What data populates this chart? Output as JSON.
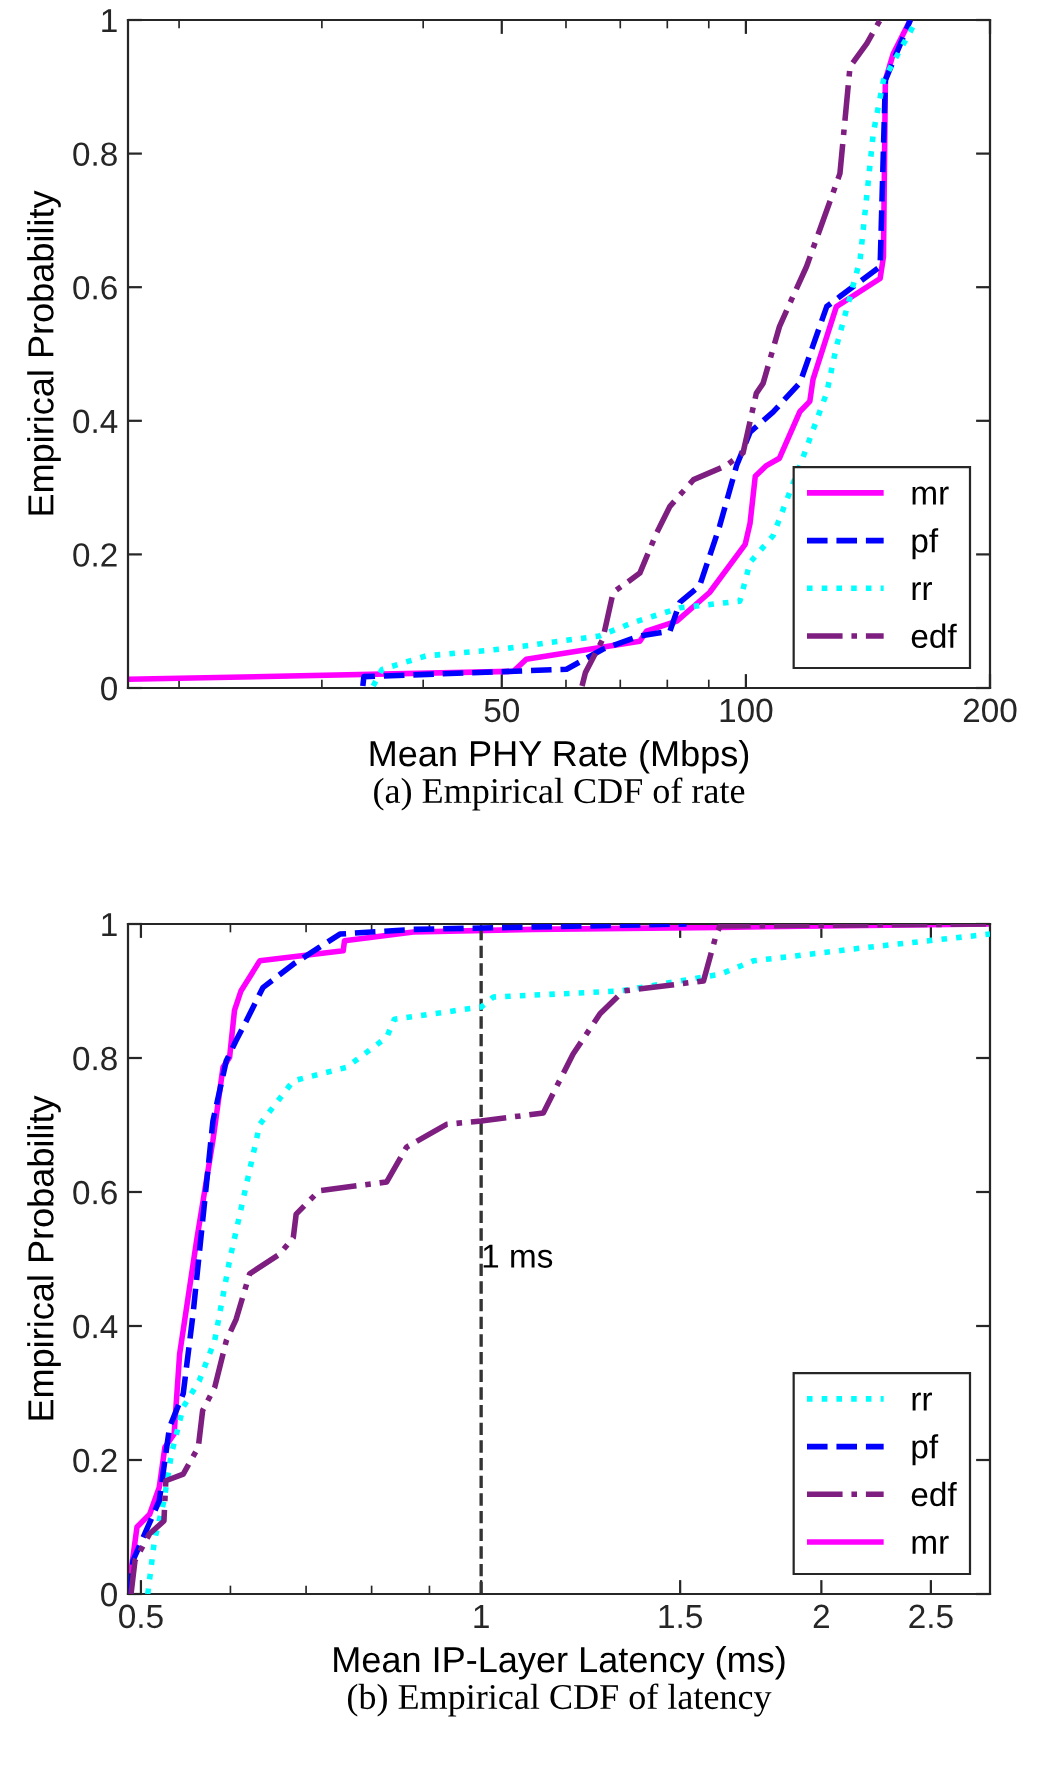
{
  "chart_data": [
    {
      "type": "line",
      "xlabel": "Mean PHY Rate (Mbps)",
      "ylabel": "Empirical Probability",
      "log": "x",
      "xlim": [
        17.3,
        200
      ],
      "xticks": [
        50,
        100,
        200
      ],
      "ylim": [
        0,
        1
      ],
      "yticks": [
        0,
        0.2,
        0.4,
        0.6,
        0.8,
        1
      ],
      "grid": false,
      "legend": "bottom right",
      "annotations": [
        "(a) Empirical CDF of rate"
      ],
      "series": [
        {
          "name": "mr",
          "color": "#ff00ff",
          "line_style": "solid",
          "x": [
            17.3,
            51.7,
            53.6,
            74,
            75.4,
            82.2,
            90.2,
            99.8,
            101.2,
            102.7,
            106,
            110,
            116.6,
            119.9,
            121,
            129.3,
            146.4,
            147.8,
            148.6,
            152,
            159.5
          ],
          "values": [
            0.013,
            0.025,
            0.043,
            0.07,
            0.085,
            0.1,
            0.143,
            0.215,
            0.247,
            0.317,
            0.333,
            0.344,
            0.414,
            0.429,
            0.462,
            0.571,
            0.613,
            0.646,
            0.91,
            0.95,
            1.0
          ]
        },
        {
          "name": "pf",
          "color": "#0000ff",
          "line_style": "dashed",
          "x": [
            33.7,
            33.8,
            60.1,
            66.6,
            74,
            80.6,
            82.9,
            87.7,
            92.8,
            97.4,
            101.2,
            108,
            116.6,
            125.8,
            130.6,
            146.4,
            148.6,
            159.5
          ],
          "values": [
            0.003,
            0.017,
            0.028,
            0.058,
            0.078,
            0.085,
            0.128,
            0.153,
            0.242,
            0.333,
            0.383,
            0.413,
            0.457,
            0.571,
            0.586,
            0.631,
            0.91,
            1.0
          ]
        },
        {
          "name": "rr",
          "color": "#00ffff",
          "line_style": "dotted",
          "x": [
            34.7,
            35.6,
            40.3,
            49.7,
            66,
            72.6,
            82.9,
            98.3,
            101.2,
            108,
            116.6,
            125.8,
            129.3,
            138.3,
            143.6,
            147.8,
            162.4
          ],
          "values": [
            0.003,
            0.028,
            0.048,
            0.058,
            0.078,
            0.098,
            0.12,
            0.13,
            0.188,
            0.228,
            0.333,
            0.442,
            0.511,
            0.641,
            0.831,
            0.91,
            1.0
          ]
        },
        {
          "name": "edf",
          "color": "#7e1e80",
          "line_style": "dashdot",
          "x": [
            62.8,
            63.4,
            66.6,
            68.6,
            74,
            77.6,
            80.6,
            86.2,
            94.6,
            99.2,
            103,
            105,
            110,
            113.3,
            118.8,
            130.6,
            134.4,
            141,
            146.4
          ],
          "values": [
            0.003,
            0.023,
            0.073,
            0.143,
            0.172,
            0.232,
            0.272,
            0.312,
            0.333,
            0.352,
            0.441,
            0.456,
            0.541,
            0.576,
            0.631,
            0.77,
            0.93,
            0.965,
            1.0
          ]
        }
      ]
    },
    {
      "type": "line",
      "xlabel": "Mean IP-Layer Latency (ms)",
      "ylabel": "Empirical Probability",
      "log": "x",
      "xlim": [
        0.487,
        2.82
      ],
      "xticks": [
        0.5,
        1,
        1.5,
        2,
        2.5
      ],
      "ylim": [
        0,
        1
      ],
      "yticks": [
        0,
        0.2,
        0.4,
        0.6,
        0.8,
        1
      ],
      "grid": false,
      "legend": "bottom right",
      "annotations": [
        "(b) Empirical CDF of latency"
      ],
      "ref_lines": [
        {
          "axis": "x",
          "value": 1,
          "label": "1 ms",
          "color": "#333333",
          "line_style": "dashed"
        }
      ],
      "series": [
        {
          "name": "rr",
          "color": "#00ffff",
          "line_style": "dotted",
          "x": [
            0.507,
            0.514,
            0.524,
            0.532,
            0.545,
            0.563,
            0.581,
            0.599,
            0.621,
            0.637,
            0.668,
            0.682,
            0.76,
            0.825,
            0.838,
            1.0,
            1.025,
            1.327,
            1.627,
            1.741,
            2.194,
            2.82
          ],
          "values": [
            0,
            0.08,
            0.139,
            0.209,
            0.279,
            0.318,
            0.378,
            0.498,
            0.617,
            0.701,
            0.746,
            0.766,
            0.786,
            0.831,
            0.858,
            0.876,
            0.891,
            0.9,
            0.925,
            0.945,
            0.965,
            0.985
          ]
        },
        {
          "name": "pf",
          "color": "#0000ff",
          "line_style": "dashed",
          "x": [
            0.489,
            0.492,
            0.519,
            0.53,
            0.545,
            0.556,
            0.567,
            0.579,
            0.595,
            0.607,
            0.62,
            0.641,
            0.682,
            0.719,
            0.75,
            0.871,
            1.52
          ],
          "values": [
            0,
            0.05,
            0.139,
            0.249,
            0.299,
            0.418,
            0.557,
            0.706,
            0.796,
            0.826,
            0.856,
            0.905,
            0.94,
            0.965,
            0.985,
            0.992,
            1.0
          ]
        },
        {
          "name": "edf",
          "color": "#7e1e80",
          "line_style": "dashdot",
          "x": [
            0.49,
            0.494,
            0.509,
            0.524,
            0.526,
            0.545,
            0.562,
            0.567,
            0.581,
            0.595,
            0.607,
            0.624,
            0.663,
            0.682,
            0.686,
            0.719,
            0.825,
            0.859,
            0.932,
            1.0,
            1.135,
            1.206,
            1.274,
            1.336,
            1.573,
            1.615,
            1.627,
            2.82
          ],
          "values": [
            0,
            0.05,
            0.09,
            0.109,
            0.169,
            0.179,
            0.219,
            0.274,
            0.308,
            0.378,
            0.41,
            0.478,
            0.507,
            0.532,
            0.567,
            0.602,
            0.615,
            0.667,
            0.701,
            0.706,
            0.718,
            0.806,
            0.866,
            0.9,
            0.915,
            0.985,
            0.997,
            1.0
          ]
        },
        {
          "name": "mr",
          "color": "#ff00ff",
          "line_style": "solid",
          "x": [
            0.487,
            0.496,
            0.509,
            0.519,
            0.525,
            0.535,
            0.541,
            0.56,
            0.579,
            0.591,
            0.599,
            0.605,
            0.613,
            0.637,
            0.755,
            0.757,
            0.871,
            1.112,
            1.627,
            2.82
          ],
          "values": [
            0,
            0.1,
            0.119,
            0.159,
            0.219,
            0.239,
            0.358,
            0.527,
            0.677,
            0.786,
            0.801,
            0.871,
            0.9,
            0.945,
            0.96,
            0.975,
            0.988,
            0.992,
            0.995,
            1.0
          ]
        }
      ]
    }
  ]
}
